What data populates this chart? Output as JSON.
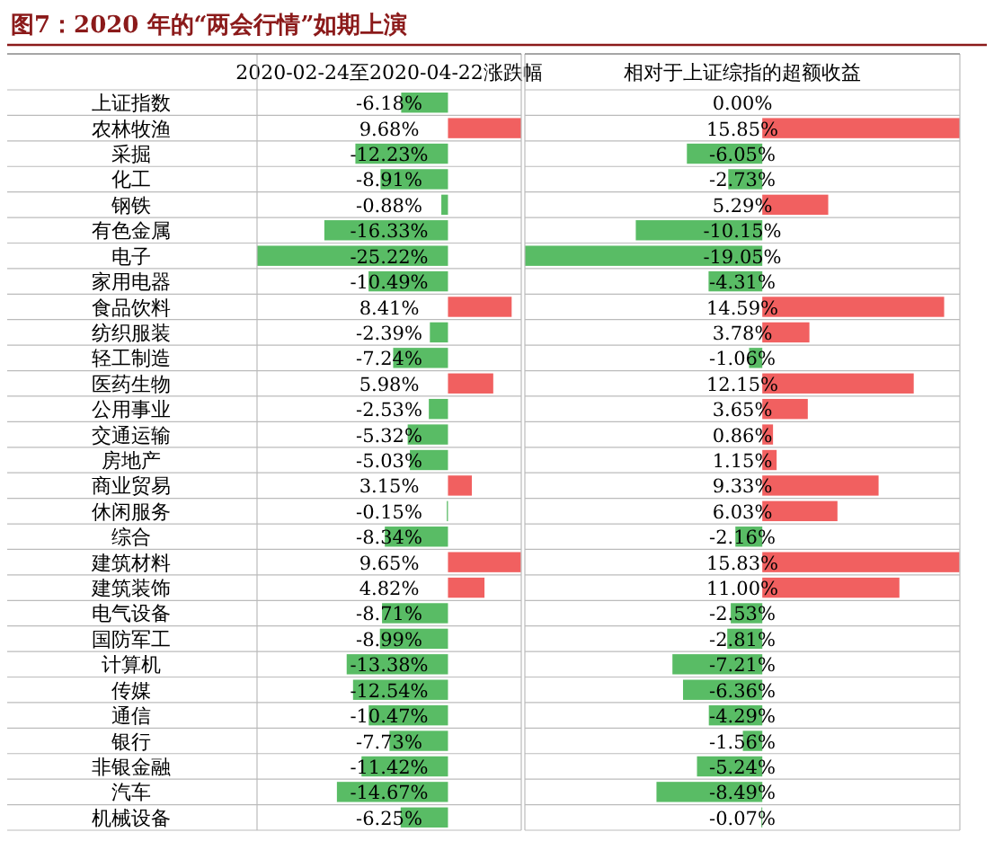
{
  "chart_data": [
    {
      "type": "bar",
      "orientation": "horizontal",
      "title": "图7：2020 年的“两会行情”如期上演",
      "subtitle": "2020-02-24至2020-04-22涨跌幅",
      "tick_labels": "y",
      "grid": true,
      "xlim": [
        -25.22,
        9.68
      ],
      "categories": [
        "上证指数",
        "农林牧渔",
        "采掘",
        "化工",
        "钢铁",
        "有色金属",
        "电子",
        "家用电器",
        "食品饮料",
        "纺织服装",
        "轻工制造",
        "医药生物",
        "公用事业",
        "交通运输",
        "房地产",
        "商业贸易",
        "休闲服务",
        "综合",
        "建筑材料",
        "建筑装饰",
        "电气设备",
        "国防军工",
        "计算机",
        "传媒",
        "通信",
        "银行",
        "非银金融",
        "汽车",
        "机械设备"
      ],
      "values": [
        -6.18,
        9.68,
        -12.23,
        -8.91,
        -0.88,
        -16.33,
        -25.22,
        -10.49,
        8.41,
        -2.39,
        -7.24,
        5.98,
        -2.53,
        -5.32,
        -5.03,
        3.15,
        -0.15,
        -8.34,
        9.65,
        4.82,
        -8.71,
        -8.99,
        -13.38,
        -12.54,
        -10.47,
        -7.73,
        -11.42,
        -14.67,
        -6.25
      ],
      "value_labels": [
        "-6.18%",
        "9.68%",
        "-12.23%",
        "-8.91%",
        "-0.88%",
        "-16.33%",
        "-25.22%",
        "-10.49%",
        "8.41%",
        "-2.39%",
        "-7.24%",
        "5.98%",
        "-2.53%",
        "-5.32%",
        "-5.03%",
        "3.15%",
        "-0.15%",
        "-8.34%",
        "9.65%",
        "4.82%",
        "-8.71%",
        "-8.99%",
        "-13.38%",
        "-12.54%",
        "-10.47%",
        "-7.73%",
        "-11.42%",
        "-14.67%",
        "-6.25%"
      ],
      "colors": [
        "#3cb04a",
        "#ee4444",
        "#3cb04a",
        "#3cb04a",
        "#3cb04a",
        "#3cb04a",
        "#3cb04a",
        "#3cb04a",
        "#ee4444",
        "#3cb04a",
        "#3cb04a",
        "#ee4444",
        "#3cb04a",
        "#3cb04a",
        "#3cb04a",
        "#ee4444",
        "#3cb04a",
        "#3cb04a",
        "#ee4444",
        "#ee4444",
        "#3cb04a",
        "#3cb04a",
        "#3cb04a",
        "#3cb04a",
        "#3cb04a",
        "#3cb04a",
        "#3cb04a",
        "#3cb04a",
        "#3cb04a"
      ]
    },
    {
      "type": "bar",
      "orientation": "horizontal",
      "title": "相对于上证综指的超额收益",
      "tick_labels": false,
      "grid": true,
      "xlim": [
        -19.05,
        15.85
      ],
      "values": [
        0.0,
        15.85,
        -6.05,
        -2.73,
        5.29,
        -10.15,
        -19.05,
        -4.31,
        14.59,
        3.78,
        -1.06,
        12.15,
        3.65,
        0.86,
        1.15,
        9.33,
        6.03,
        -2.16,
        15.83,
        11.0,
        -2.53,
        -2.81,
        -7.21,
        -6.36,
        -4.29,
        -1.56,
        -5.24,
        -8.49,
        -0.07
      ],
      "value_labels": [
        "0.00%",
        "15.85%",
        "-6.05%",
        "-2.73%",
        "5.29%",
        "-10.15%",
        "-19.05%",
        "-4.31%",
        "14.59%",
        "3.78%",
        "-1.06%",
        "12.15%",
        "3.65%",
        "0.86%",
        "1.15%",
        "9.33%",
        "6.03%",
        "-2.16%",
        "15.83%",
        "11.00%",
        "-2.53%",
        "-2.81%",
        "-7.21%",
        "-6.36%",
        "-4.29%",
        "-1.56%",
        "-5.24%",
        "-8.49%",
        "-0.07%"
      ],
      "colors": [
        "#3cb04a",
        "#ee4444",
        "#3cb04a",
        "#3cb04a",
        "#ee4444",
        "#3cb04a",
        "#3cb04a",
        "#3cb04a",
        "#ee4444",
        "#ee4444",
        "#3cb04a",
        "#ee4444",
        "#ee4444",
        "#ee4444",
        "#ee4444",
        "#ee4444",
        "#ee4444",
        "#3cb04a",
        "#ee4444",
        "#ee4444",
        "#3cb04a",
        "#3cb04a",
        "#3cb04a",
        "#3cb04a",
        "#3cb04a",
        "#3cb04a",
        "#3cb04a",
        "#3cb04a",
        "#3cb04a"
      ]
    }
  ]
}
